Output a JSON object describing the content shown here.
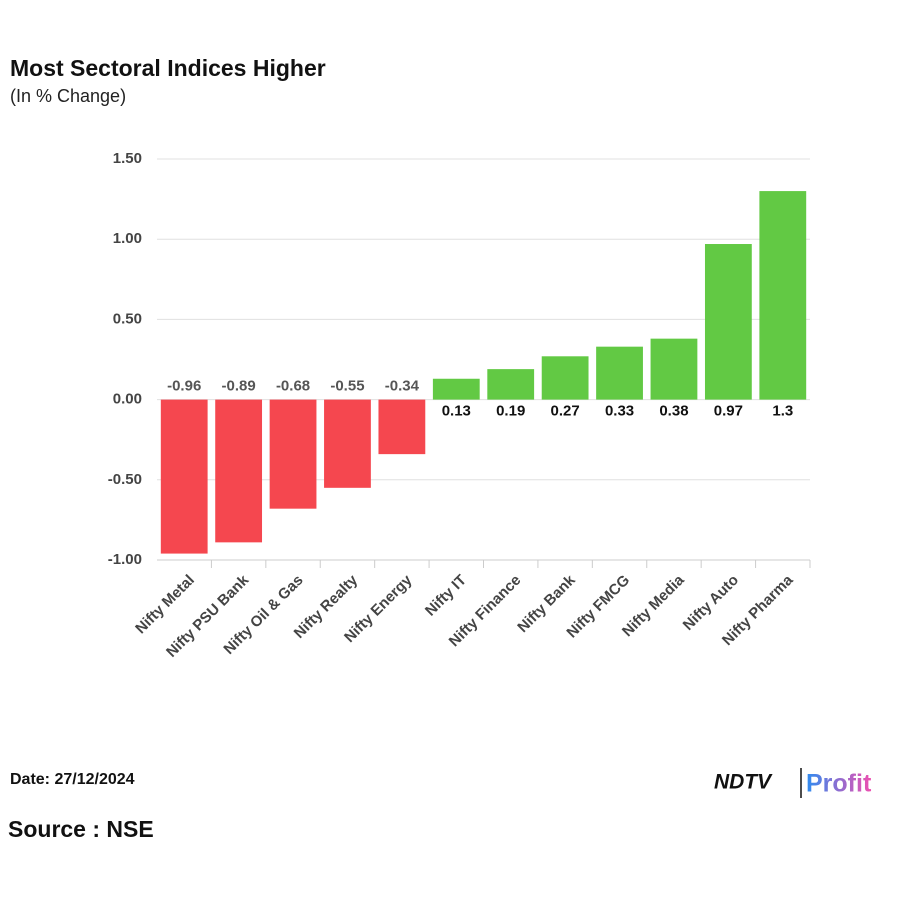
{
  "chart_data": {
    "type": "bar",
    "title": "Most Sectoral Indices Higher",
    "subtitle": "(In % Change)",
    "categories": [
      "Nifty Metal",
      "Nifty PSU Bank",
      "Nifty Oil & Gas",
      "Nifty Realty",
      "Nifty Energy",
      "Nifty IT",
      "Nifty Finance",
      "Nifty Bank",
      "Nifty FMCG",
      "Nifty Media",
      "Nifty Auto",
      "Nifty Pharma"
    ],
    "values": [
      -0.96,
      -0.89,
      -0.68,
      -0.55,
      -0.34,
      0.13,
      0.19,
      0.27,
      0.33,
      0.38,
      0.97,
      1.3
    ],
    "negative_color": "#f5474f",
    "positive_color": "#62c944",
    "ylim": [
      -1,
      1.5
    ],
    "yticks": [
      {
        "value": -1,
        "label": "-1.00"
      },
      {
        "value": -0.5,
        "label": "-0.50"
      },
      {
        "value": 0,
        "label": "0.00"
      },
      {
        "value": 0.5,
        "label": "0.50"
      },
      {
        "value": 1,
        "label": "1.00"
      },
      {
        "value": 1.5,
        "label": "1.50"
      }
    ],
    "grid": true
  },
  "footer": {
    "date": "Date: 27/12/2024",
    "source": "Source : NSE",
    "logo_left": "NDTV",
    "logo_right": "Profit"
  }
}
